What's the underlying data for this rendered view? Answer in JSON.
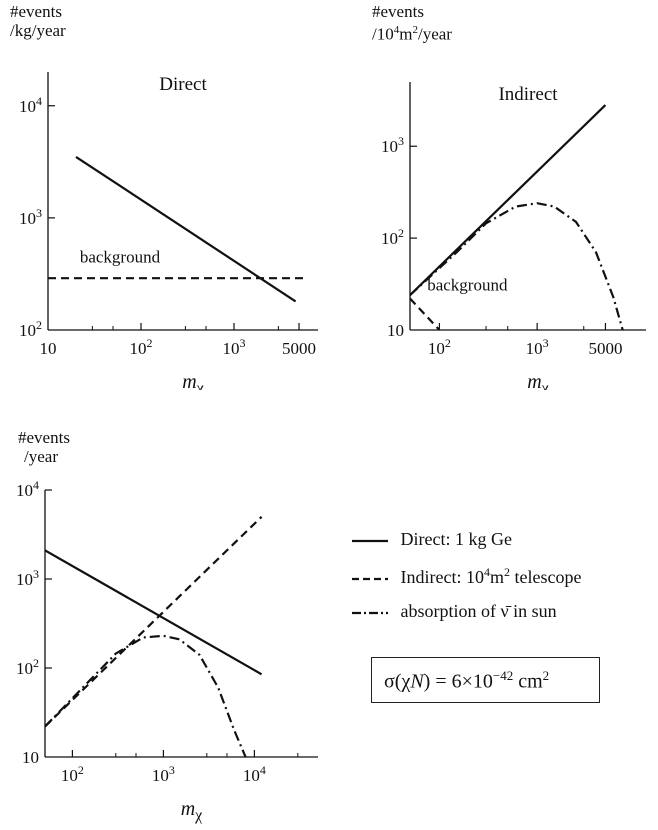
{
  "chart_data": [
    {
      "type": "line",
      "title": "Direct",
      "ylabel_lines": [
        "#events",
        "/kg/year"
      ],
      "xlabel": "m_chi",
      "xlabel_main": "m",
      "xlabel_sub": "χ",
      "xscale": "log",
      "yscale": "log",
      "xlim": [
        10,
        8000
      ],
      "ylim": [
        100,
        20000
      ],
      "xticks_major": [
        {
          "v": 10,
          "base": "10",
          "exp": ""
        },
        {
          "v": 100,
          "base": "10",
          "exp": "2"
        },
        {
          "v": 1000,
          "base": "10",
          "exp": "3"
        },
        {
          "v": 5000,
          "base": "5000",
          "exp": ""
        }
      ],
      "yticks_major": [
        {
          "v": 100,
          "base": "10",
          "exp": "2"
        },
        {
          "v": 1000,
          "base": "10",
          "exp": "3"
        },
        {
          "v": 10000,
          "base": "10",
          "exp": "4"
        }
      ],
      "series": [
        {
          "style": "solid",
          "x": [
            20,
            4600
          ],
          "y": [
            3500,
            180
          ]
        },
        {
          "style": "dashed",
          "x": [
            10,
            6000
          ],
          "y": [
            290,
            290
          ]
        }
      ],
      "annotations": [
        {
          "text": "background",
          "x": 22,
          "y": 400
        }
      ]
    },
    {
      "type": "line",
      "title": "Indirect",
      "ylabel_lines": [
        "#events",
        "/10⁴m²/year"
      ],
      "ylabel_html": "/10<sup>4</sup>m<sup>2</sup>/year",
      "xlabel": "m_chi",
      "xlabel_main": "m",
      "xlabel_sub": "χ",
      "xscale": "log",
      "yscale": "log",
      "xlim": [
        50,
        13000
      ],
      "ylim": [
        10,
        5000
      ],
      "xticks_major": [
        {
          "v": 100,
          "base": "10",
          "exp": "2"
        },
        {
          "v": 1000,
          "base": "10",
          "exp": "3"
        },
        {
          "v": 5000,
          "base": "5000",
          "exp": ""
        }
      ],
      "yticks_major": [
        {
          "v": 10,
          "base": "10",
          "exp": ""
        },
        {
          "v": 100,
          "base": "10",
          "exp": "2"
        },
        {
          "v": 1000,
          "base": "10",
          "exp": "3"
        }
      ],
      "series": [
        {
          "style": "solid",
          "x": [
            50,
            5000
          ],
          "y": [
            24,
            2800
          ]
        },
        {
          "style": "dashdot",
          "x": [
            50,
            150,
            300,
            600,
            1000,
            1500,
            2500,
            4000,
            6000,
            7500
          ],
          "y": [
            24,
            70,
            145,
            220,
            240,
            220,
            150,
            70,
            23,
            10
          ]
        },
        {
          "style": "dashed",
          "x": [
            50,
            100
          ],
          "y": [
            22,
            10
          ]
        }
      ],
      "annotations": [
        {
          "text": "background",
          "x": 75,
          "y": 27
        }
      ]
    },
    {
      "type": "line",
      "ylabel_lines": [
        "#events",
        "/year"
      ],
      "xlabel": "m_chi",
      "xlabel_main": "m",
      "xlabel_sub": "χ",
      "xscale": "log",
      "yscale": "log",
      "xlim": [
        50,
        50000
      ],
      "ylim": [
        10,
        10000
      ],
      "xticks_major": [
        {
          "v": 100,
          "base": "10",
          "exp": "2"
        },
        {
          "v": 1000,
          "base": "10",
          "exp": "3"
        },
        {
          "v": 10000,
          "base": "10",
          "exp": "4"
        }
      ],
      "yticks_major": [
        {
          "v": 10,
          "base": "10",
          "exp": ""
        },
        {
          "v": 100,
          "base": "10",
          "exp": "2"
        },
        {
          "v": 1000,
          "base": "10",
          "exp": "3"
        },
        {
          "v": 10000,
          "base": "10",
          "exp": "4"
        }
      ],
      "series": [
        {
          "name": "Direct: 1 kg Ge",
          "style": "solid",
          "x": [
            50,
            12000
          ],
          "y": [
            2100,
            85
          ]
        },
        {
          "name": "Indirect: 10⁴m² telescope",
          "style": "dashed",
          "x": [
            50,
            12000
          ],
          "y": [
            22,
            5000
          ]
        },
        {
          "name": "absorption of ν̄ in sun",
          "style": "dashdot",
          "x": [
            50,
            150,
            300,
            600,
            1000,
            1500,
            2500,
            4000,
            6000,
            8000
          ],
          "y": [
            22,
            70,
            145,
            220,
            230,
            210,
            140,
            60,
            20,
            10
          ]
        }
      ],
      "legend_position": "right"
    }
  ],
  "legend": [
    {
      "style": "solid",
      "label": "Direct: 1 kg Ge"
    },
    {
      "style": "dashed",
      "label_pre": "Indirect: 10",
      "label_sup1": "4",
      "label_mid": "m",
      "label_sup2": "2",
      "label_post": " telescope"
    },
    {
      "style": "dashdot",
      "label_pre": "absorption of ",
      "label_nu": "ν̄",
      "label_post": " in sun"
    }
  ],
  "cross_section": {
    "sigma": "σ(χ",
    "N": "N",
    "eq": ") = 6×10",
    "exp": "−42",
    "unit": " cm",
    "unit_exp": "2"
  }
}
